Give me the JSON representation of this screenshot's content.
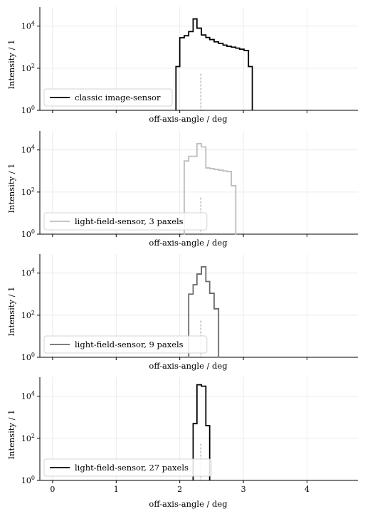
{
  "chart_data": [
    {
      "type": "line",
      "drawstyle": "steps",
      "scale": "log",
      "xlabel": "off-axis-angle / deg",
      "ylabel": "Intensity / 1",
      "xlim": [
        -0.2,
        4.8
      ],
      "ylim": [
        1,
        80000
      ],
      "xticks": [
        "0",
        "1",
        "2",
        "3",
        "4"
      ],
      "show_xtick_labels": false,
      "yticks": [
        {
          "value": 1,
          "label": "10^0"
        },
        {
          "value": 100,
          "label": "10^2"
        },
        {
          "value": 10000,
          "label": "10^4"
        }
      ],
      "grid": true,
      "legend_position": "lower-left",
      "reference_line_x": 2.33,
      "series": [
        {
          "name": "classic image-sensor",
          "color": "#000000",
          "edges": [
            1.94,
            2.0,
            2.07,
            2.14,
            2.21,
            2.27,
            2.34,
            2.41,
            2.47,
            2.54,
            2.61,
            2.68,
            2.74,
            2.81,
            2.88,
            2.94,
            3.01,
            3.08,
            3.14
          ],
          "values": [
            120,
            2800,
            3500,
            5500,
            22000,
            8000,
            3800,
            2900,
            2300,
            1800,
            1500,
            1250,
            1100,
            1000,
            900,
            800,
            700,
            120
          ]
        }
      ]
    },
    {
      "type": "line",
      "drawstyle": "steps",
      "scale": "log",
      "xlabel": "off-axis-angle / deg",
      "ylabel": "Intensity / 1",
      "xlim": [
        -0.2,
        4.8
      ],
      "ylim": [
        1,
        80000
      ],
      "xticks": [
        "0",
        "1",
        "2",
        "3",
        "4"
      ],
      "show_xtick_labels": false,
      "yticks": [
        {
          "value": 1,
          "label": "10^0"
        },
        {
          "value": 100,
          "label": "10^2"
        },
        {
          "value": 10000,
          "label": "10^4"
        }
      ],
      "grid": true,
      "legend_position": "lower-left",
      "reference_line_x": 2.33,
      "series": [
        {
          "name": "light-field-sensor, 3 paxels",
          "color": "#bdbdbd",
          "edges": [
            2.07,
            2.14,
            2.27,
            2.34,
            2.41,
            2.47,
            2.54,
            2.61,
            2.68,
            2.74,
            2.81,
            2.88
          ],
          "values": [
            3000,
            5000,
            20000,
            14000,
            1400,
            1300,
            1200,
            1100,
            1000,
            950,
            200
          ]
        }
      ]
    },
    {
      "type": "line",
      "drawstyle": "steps",
      "scale": "log",
      "xlabel": "off-axis-angle / deg",
      "ylabel": "Intensity / 1",
      "xlim": [
        -0.2,
        4.8
      ],
      "ylim": [
        1,
        80000
      ],
      "xticks": [
        "0",
        "1",
        "2",
        "3",
        "4"
      ],
      "show_xtick_labels": false,
      "yticks": [
        {
          "value": 1,
          "label": "10^0"
        },
        {
          "value": 100,
          "label": "10^2"
        },
        {
          "value": 10000,
          "label": "10^4"
        }
      ],
      "grid": true,
      "legend_position": "lower-left",
      "reference_line_x": 2.33,
      "series": [
        {
          "name": "light-field-sensor, 9 paxels",
          "color": "#6b6b6b",
          "edges": [
            2.14,
            2.21,
            2.27,
            2.34,
            2.41,
            2.47,
            2.54,
            2.61
          ],
          "values": [
            1000,
            2800,
            9000,
            20000,
            4000,
            1100,
            200
          ]
        }
      ]
    },
    {
      "type": "line",
      "drawstyle": "steps",
      "scale": "log",
      "xlabel": "off-axis-angle / deg",
      "ylabel": "Intensity / 1",
      "xlim": [
        -0.2,
        4.8
      ],
      "ylim": [
        1,
        80000
      ],
      "xticks": [
        "0",
        "1",
        "2",
        "3",
        "4"
      ],
      "show_xtick_labels": true,
      "yticks": [
        {
          "value": 1,
          "label": "10^0"
        },
        {
          "value": 100,
          "label": "10^2"
        },
        {
          "value": 10000,
          "label": "10^4"
        }
      ],
      "grid": true,
      "legend_position": "lower-left",
      "reference_line_x": 2.33,
      "series": [
        {
          "name": "light-field-sensor, 27 paxels",
          "color": "#000000",
          "edges": [
            2.21,
            2.27,
            2.34,
            2.41,
            2.47
          ],
          "values": [
            500,
            35000,
            30000,
            400
          ]
        }
      ]
    }
  ]
}
